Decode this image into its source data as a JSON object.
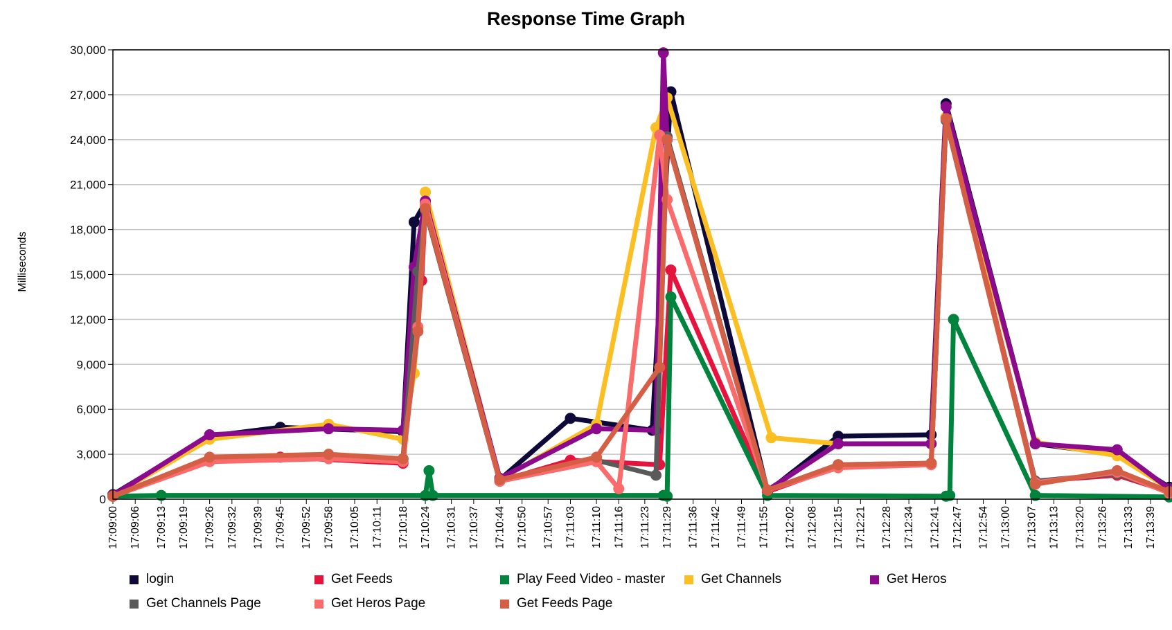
{
  "chart_data": {
    "type": "line",
    "title": "Response Time Graph",
    "ylabel": "Milliseconds",
    "xlabel": "",
    "ylim": [
      0,
      30000
    ],
    "y_ticks": [
      0,
      3000,
      6000,
      9000,
      12000,
      15000,
      18000,
      21000,
      24000,
      27000,
      30000
    ],
    "y_tick_labels": [
      "0",
      "3,000",
      "6,000",
      "9,000",
      "12,000",
      "15,000",
      "18,000",
      "21,000",
      "24,000",
      "27,000",
      "30,000"
    ],
    "x_range": [
      "17:09:00",
      "17:13:44"
    ],
    "x_tick_labels": [
      "17:09:00",
      "17:09:06",
      "17:09:13",
      "17:09:19",
      "17:09:26",
      "17:09:32",
      "17:09:39",
      "17:09:45",
      "17:09:52",
      "17:09:58",
      "17:10:05",
      "17:10:11",
      "17:10:18",
      "17:10:24",
      "17:10:31",
      "17:10:37",
      "17:10:44",
      "17:10:50",
      "17:10:57",
      "17:11:03",
      "17:11:10",
      "17:11:16",
      "17:11:23",
      "17:11:29",
      "17:11:36",
      "17:11:42",
      "17:11:49",
      "17:11:55",
      "17:12:02",
      "17:12:08",
      "17:12:15",
      "17:12:21",
      "17:12:28",
      "17:12:34",
      "17:12:41",
      "17:12:47",
      "17:12:54",
      "17:13:00",
      "17:13:07",
      "17:13:13",
      "17:13:20",
      "17:13:26",
      "17:13:33",
      "17:13:39"
    ],
    "grid": true,
    "legend_position": "bottom",
    "series": [
      {
        "name": "login",
        "color": "#0d0a3a",
        "x": [
          "17:09:00",
          "17:09:26",
          "17:09:45",
          "17:10:18",
          "17:10:21",
          "17:10:24",
          "17:10:44",
          "17:11:03",
          "17:11:25",
          "17:11:30",
          "17:11:56",
          "17:12:15",
          "17:12:40",
          "17:12:44",
          "17:13:08",
          "17:13:30",
          "17:13:44"
        ],
        "y": [
          300,
          4200,
          4800,
          4500,
          18500,
          19800,
          1300,
          5400,
          4600,
          27200,
          500,
          4200,
          4300,
          26400,
          3700,
          3000,
          800
        ]
      },
      {
        "name": "Get Feeds",
        "color": "#e4143f",
        "x": [
          "17:09:00",
          "17:09:26",
          "17:09:45",
          "17:10:18",
          "17:10:23",
          "17:10:24",
          "17:10:44",
          "17:11:03",
          "17:11:27",
          "17:11:30",
          "17:11:56",
          "17:12:15",
          "17:12:40",
          "17:12:44",
          "17:13:08",
          "17:13:30",
          "17:13:44"
        ],
        "y": [
          200,
          2600,
          2800,
          2400,
          14600,
          19500,
          1200,
          2600,
          2300,
          15300,
          500,
          2200,
          2400,
          25500,
          1200,
          1600,
          500
        ]
      },
      {
        "name": "Play Feed Video - master",
        "color": "#00843d",
        "x": [
          "17:09:00",
          "17:09:13",
          "17:10:24",
          "17:10:25",
          "17:10:26",
          "17:11:28",
          "17:11:29",
          "17:11:30",
          "17:11:56",
          "17:12:44",
          "17:12:45",
          "17:12:46",
          "17:13:08",
          "17:13:44"
        ],
        "y": [
          200,
          250,
          250,
          1900,
          250,
          250,
          200,
          13500,
          250,
          200,
          250,
          12000,
          250,
          150
        ]
      },
      {
        "name": "Get Channels",
        "color": "#fbbf24",
        "x": [
          "17:09:00",
          "17:09:26",
          "17:09:58",
          "17:10:18",
          "17:10:21",
          "17:10:24",
          "17:10:44",
          "17:11:10",
          "17:11:26",
          "17:11:29",
          "17:11:57",
          "17:12:15",
          "17:12:40",
          "17:12:44",
          "17:13:08",
          "17:13:30",
          "17:13:44"
        ],
        "y": [
          250,
          4000,
          5000,
          4000,
          8400,
          20500,
          1300,
          5000,
          24800,
          26800,
          4100,
          3700,
          3700,
          25500,
          3800,
          2900,
          700
        ]
      },
      {
        "name": "Get Heros",
        "color": "#8b0a8e",
        "x": [
          "17:09:00",
          "17:09:26",
          "17:09:58",
          "17:10:18",
          "17:10:21",
          "17:10:24",
          "17:10:44",
          "17:11:10",
          "17:11:26",
          "17:11:28",
          "17:11:29",
          "17:11:56",
          "17:12:15",
          "17:12:40",
          "17:12:44",
          "17:13:08",
          "17:13:30",
          "17:13:44"
        ],
        "y": [
          250,
          4300,
          4700,
          4600,
          15500,
          19900,
          1400,
          4700,
          4600,
          29800,
          24000,
          600,
          3700,
          3700,
          26200,
          3700,
          3300,
          700
        ]
      },
      {
        "name": "Get Channels Page",
        "color": "#5a5a5a",
        "x": [
          "17:09:00",
          "17:09:26",
          "17:09:58",
          "17:10:18",
          "17:10:22",
          "17:10:24",
          "17:10:44",
          "17:11:10",
          "17:11:26",
          "17:11:29",
          "17:11:56",
          "17:12:15",
          "17:12:40",
          "17:12:44",
          "17:13:08",
          "17:13:30",
          "17:13:44"
        ],
        "y": [
          200,
          2700,
          2900,
          2700,
          15200,
          19300,
          1200,
          2600,
          1600,
          24200,
          600,
          2300,
          2400,
          25300,
          1200,
          1700,
          500
        ]
      },
      {
        "name": "Get Heros Page",
        "color": "#fa6b6b",
        "x": [
          "17:09:00",
          "17:09:26",
          "17:09:58",
          "17:10:18",
          "17:10:22",
          "17:10:24",
          "17:10:44",
          "17:11:10",
          "17:11:16",
          "17:11:27",
          "17:11:29",
          "17:11:56",
          "17:12:15",
          "17:12:40",
          "17:12:44",
          "17:13:08",
          "17:13:30",
          "17:13:44"
        ],
        "y": [
          200,
          2500,
          2700,
          2500,
          11500,
          19700,
          1200,
          2500,
          700,
          24300,
          20000,
          600,
          2100,
          2300,
          25400,
          1100,
          1800,
          400
        ]
      },
      {
        "name": "Get Feeds Page",
        "color": "#d45f45",
        "x": [
          "17:09:00",
          "17:09:26",
          "17:09:58",
          "17:10:18",
          "17:10:22",
          "17:10:24",
          "17:10:44",
          "17:11:10",
          "17:11:27",
          "17:11:29",
          "17:11:56",
          "17:12:15",
          "17:12:40",
          "17:12:44",
          "17:13:08",
          "17:13:30",
          "17:13:44"
        ],
        "y": [
          200,
          2800,
          3000,
          2700,
          11200,
          19400,
          1300,
          2800,
          8800,
          24000,
          600,
          2300,
          2400,
          25400,
          1000,
          1900,
          500
        ]
      }
    ]
  }
}
